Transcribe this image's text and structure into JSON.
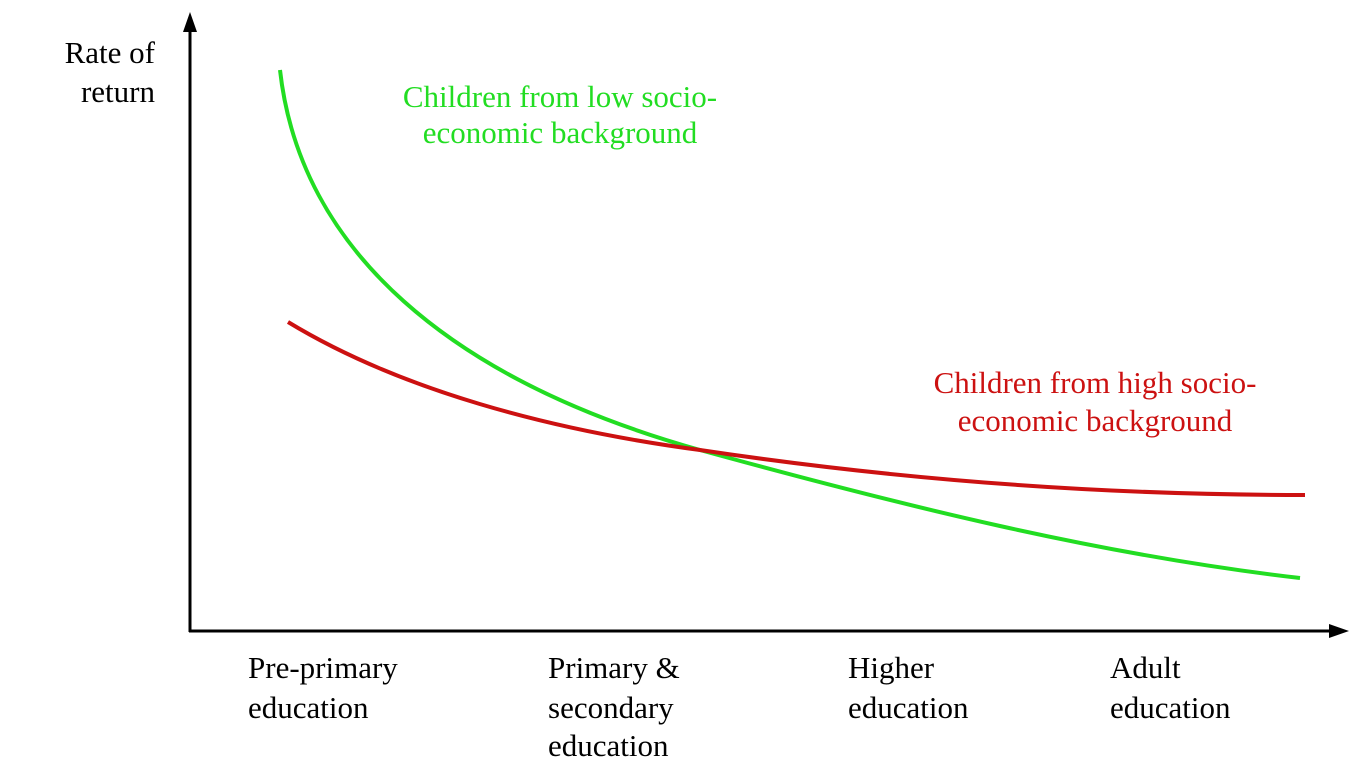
{
  "axes": {
    "y_label": [
      "Rate of",
      "return"
    ]
  },
  "curves": [
    {
      "label": [
        "Children from low socio-",
        "economic background"
      ]
    },
    {
      "label": [
        "Children from high socio-",
        "economic background"
      ]
    }
  ],
  "categories": [
    [
      "Pre-primary",
      "education"
    ],
    [
      "Primary &",
      "secondary",
      "education"
    ],
    [
      "Higher",
      "education"
    ],
    [
      "Adult",
      "education"
    ]
  ]
}
